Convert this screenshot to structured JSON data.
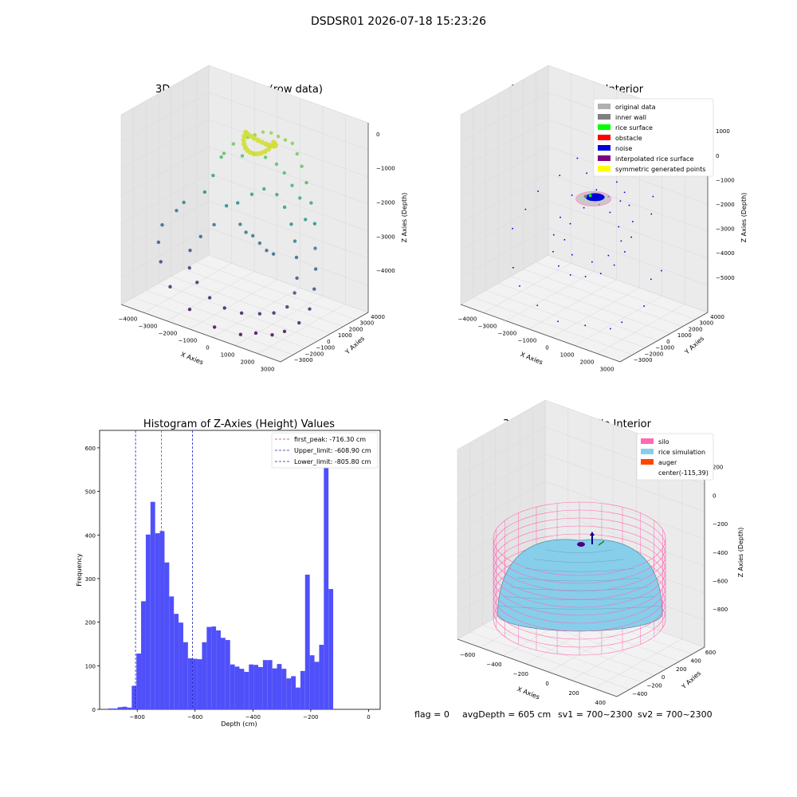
{
  "figure": {
    "suptitle": "DSDSR01 2026-07-18 15:23:26",
    "footer": {
      "flag": "flag = 0",
      "avg_depth": "avgDepth = 605 cm",
      "sv1": "sv1 = 700~2300",
      "sv2": "sv2 = 700~2300"
    }
  },
  "colors": {
    "histogram_bar": "#5050fa",
    "first_peak_line": "#e03030",
    "limit_lines": "#2020c0",
    "silo_wire": "#ff69b4",
    "rice_simulation": "#87ceeb",
    "auger": "#ff4500",
    "classify_original": "#b0b0b0",
    "classify_inner_wall": "#808080",
    "classify_rice_surface": "#00ff00",
    "classify_obstacle": "#ff0000",
    "classify_noise": "#0000dd",
    "classify_interpolated": "#800080",
    "classify_symmetric": "#ffff00"
  },
  "chart_data": [
    {
      "type": "scatter",
      "title": "3D Plot of Silo Interior(row data)",
      "projection": "3d",
      "xlabel": "X Axies",
      "ylabel": "Y Axies",
      "zlabel": "Z Axies (Depth)",
      "x_ticks": [
        "−4000",
        "−3000",
        "−2000",
        "−1000",
        "0",
        "1000",
        "2000",
        "3000"
      ],
      "y_ticks": [
        "−3000",
        "−2000",
        "−1000",
        "0",
        "1000",
        "2000",
        "3000",
        "4000"
      ],
      "z_ticks": [
        "0",
        "−1000",
        "−2000",
        "−3000",
        "−4000"
      ],
      "xlim": [
        -4500,
        3500
      ],
      "ylim": [
        -3500,
        4500
      ],
      "zlim": [
        -4600,
        300
      ],
      "colormap": "viridis",
      "points": [
        [
          -4200,
          -300,
          -3000
        ],
        [
          -3700,
          100,
          -2600
        ],
        [
          -3500,
          400,
          -2400
        ],
        [
          -3000,
          1400,
          -2200
        ],
        [
          -2800,
          1800,
          -1800
        ],
        [
          -2500,
          2000,
          -1300
        ],
        [
          -2200,
          1700,
          -1100
        ],
        [
          -2000,
          2200,
          -900
        ],
        [
          -1500,
          2600,
          -700
        ],
        [
          -1200,
          2700,
          -600
        ],
        [
          -900,
          2900,
          -500
        ],
        [
          -600,
          3100,
          -500
        ],
        [
          -300,
          3200,
          -550
        ],
        [
          0,
          3300,
          -600
        ],
        [
          300,
          3400,
          -650
        ],
        [
          700,
          3100,
          -800
        ],
        [
          1100,
          2800,
          -1000
        ],
        [
          1500,
          2500,
          -1300
        ],
        [
          1900,
          2200,
          -1700
        ],
        [
          2300,
          1800,
          -2100
        ],
        [
          2600,
          1300,
          -2600
        ],
        [
          2900,
          800,
          -3000
        ],
        [
          3100,
          300,
          -3400
        ],
        [
          3200,
          -300,
          -3800
        ],
        [
          3000,
          -900,
          -4100
        ],
        [
          2600,
          -1500,
          -4300
        ],
        [
          2200,
          -1900,
          -4400
        ],
        [
          1600,
          -2300,
          -4400
        ],
        [
          1000,
          -2600,
          -4500
        ],
        [
          -200,
          -2800,
          -4500
        ],
        [
          -1500,
          -2700,
          -4300
        ],
        [
          -2700,
          -2300,
          -4000
        ],
        [
          -3500,
          -1700,
          -3600
        ],
        [
          -4000,
          -1000,
          -3300
        ],
        [
          -1000,
          1000,
          -2600
        ],
        [
          -600,
          800,
          -2700
        ],
        [
          -200,
          700,
          -2700
        ],
        [
          200,
          600,
          -2800
        ],
        [
          600,
          500,
          -2900
        ],
        [
          1000,
          400,
          -2900
        ],
        [
          -1400,
          1500,
          -2200
        ],
        [
          -1800,
          1200,
          -2300
        ],
        [
          -800,
          1700,
          -1900
        ],
        [
          -300,
          1900,
          -1700
        ],
        [
          400,
          1800,
          -1700
        ],
        [
          900,
          1600,
          -1900
        ],
        [
          1400,
          1300,
          -2200
        ],
        [
          1800,
          900,
          -2500
        ],
        [
          2100,
          500,
          -2800
        ],
        [
          2400,
          0,
          -3200
        ],
        [
          2500,
          -400,
          -3500
        ],
        [
          2400,
          -900,
          -3800
        ],
        [
          1900,
          -1200,
          -4000
        ],
        [
          1300,
          -1400,
          -4100
        ],
        [
          500,
          -1600,
          -4200
        ],
        [
          -300,
          -1700,
          -4200
        ],
        [
          -1100,
          -1600,
          -4100
        ],
        [
          -1900,
          -1300,
          -3900
        ],
        [
          -2500,
          -900,
          -3700
        ],
        [
          -2800,
          -300,
          -3400
        ],
        [
          -2600,
          300,
          -3100
        ],
        [
          -2200,
          800,
          -2800
        ],
        [
          0,
          2500,
          -1100
        ],
        [
          -500,
          2400,
          -1000
        ],
        [
          500,
          2300,
          -1200
        ],
        [
          -1000,
          2300,
          -1000
        ],
        [
          1000,
          2100,
          -1400
        ],
        [
          -1500,
          2100,
          -1100
        ],
        [
          1500,
          1900,
          -1600
        ],
        [
          2000,
          1500,
          -2000
        ]
      ]
    },
    {
      "type": "scatter",
      "title": "3D classify of Silo Interior",
      "projection": "3d",
      "xlabel": "X Axies",
      "ylabel": "Y Axies",
      "zlabel": "Z Axies (Depth)",
      "x_ticks": [
        "−4000",
        "−3000",
        "−2000",
        "−1000",
        "0",
        "1000",
        "2000",
        "3000"
      ],
      "y_ticks": [
        "−3000",
        "−2000",
        "−1000",
        "0",
        "1000",
        "2000",
        "3000",
        "4000"
      ],
      "z_ticks": [
        "1000",
        "0",
        "−1000",
        "−2000",
        "−3000",
        "−4000",
        "−5000"
      ],
      "xlim": [
        -4500,
        3500
      ],
      "ylim": [
        -3500,
        4500
      ],
      "zlim": [
        -5600,
        1300
      ],
      "legend_position": "top-right",
      "legend": [
        {
          "label": "original data",
          "color": "#b0b0b0"
        },
        {
          "label": "inner wall",
          "color": "#808080"
        },
        {
          "label": "rice surface",
          "color": "#00ff00"
        },
        {
          "label": "obstacle",
          "color": "#ff0000"
        },
        {
          "label": "noise",
          "color": "#0000dd"
        },
        {
          "label": "interpolated rice surface",
          "color": "#800080"
        },
        {
          "label": "symmetric generated points",
          "color": "#ffff00"
        }
      ],
      "points": [
        [
          -1200,
          2000,
          -1200
        ],
        [
          -800,
          2200,
          -1100
        ],
        [
          -300,
          2300,
          -1100
        ],
        [
          200,
          2200,
          -1200
        ],
        [
          700,
          2000,
          -1400
        ],
        [
          1100,
          1700,
          -1700
        ],
        [
          1500,
          1300,
          -2100
        ],
        [
          1700,
          800,
          -2500
        ],
        [
          1700,
          200,
          -2900
        ],
        [
          1500,
          -400,
          -3300
        ],
        [
          1100,
          -900,
          -3600
        ],
        [
          500,
          -1200,
          -3800
        ],
        [
          -200,
          -1300,
          -3900
        ],
        [
          -900,
          -1100,
          -3800
        ],
        [
          -1400,
          -700,
          -3500
        ],
        [
          -1700,
          -100,
          -3100
        ],
        [
          -1700,
          500,
          -2600
        ],
        [
          -1500,
          1200,
          -1900
        ],
        [
          -3500,
          600,
          -2800
        ],
        [
          -3200,
          1200,
          -2200
        ],
        [
          -2800,
          -1800,
          -4200
        ],
        [
          -2200,
          -2300,
          -4600
        ],
        [
          2600,
          -1700,
          -4800
        ],
        [
          2300,
          -2200,
          -5000
        ],
        [
          3000,
          -400,
          -4400
        ],
        [
          2800,
          600,
          -3700
        ],
        [
          -600,
          3200,
          -700
        ],
        [
          400,
          3300,
          -800
        ],
        [
          1800,
          2600,
          -1400
        ],
        [
          -2000,
          2600,
          -1000
        ],
        [
          0,
          -2800,
          -5200
        ],
        [
          -1200,
          -2500,
          -5000
        ],
        [
          1200,
          -2500,
          -5100
        ],
        [
          -300,
          1500,
          -2000
        ],
        [
          300,
          1400,
          -2100
        ],
        [
          900,
          1100,
          -2400
        ],
        [
          -900,
          1200,
          -2200
        ],
        [
          1300,
          600,
          -2700
        ],
        [
          -1200,
          500,
          -2700
        ],
        [
          1100,
          -200,
          -3100
        ],
        [
          -1100,
          -200,
          -3100
        ],
        [
          500,
          -600,
          -3400
        ],
        [
          -500,
          -600,
          -3400
        ],
        [
          0,
          1800,
          -1700
        ],
        [
          600,
          1800,
          -1700
        ],
        [
          -600,
          1800,
          -1600
        ],
        [
          2100,
          1900,
          -1800
        ],
        [
          -2500,
          1900,
          -1600
        ],
        [
          3100,
          1000,
          -3400
        ],
        [
          -3600,
          -400,
          -3300
        ]
      ]
    },
    {
      "type": "bar",
      "subtype": "histogram",
      "title": "Histogram of Z-Axies (Height) Values",
      "xlabel": "Depth (cm)",
      "ylabel": "Frequency",
      "xlim": [
        -930,
        40
      ],
      "ylim": [
        0,
        640
      ],
      "x_ticks": [
        -800,
        -600,
        -400,
        -200,
        0
      ],
      "x_tick_labels": [
        "−800",
        "−600",
        "−400",
        "−200",
        "0"
      ],
      "y_ticks": [
        0,
        100,
        200,
        300,
        400,
        500,
        600
      ],
      "grid": false,
      "legend_position": "top-right",
      "bin_start": -900,
      "bin_width": 16.2,
      "values": [
        2,
        2,
        5,
        6,
        4,
        54,
        128,
        248,
        401,
        476,
        404,
        409,
        337,
        259,
        219,
        199,
        154,
        117,
        116,
        115,
        154,
        189,
        190,
        181,
        164,
        159,
        103,
        98,
        93,
        86,
        103,
        102,
        97,
        113,
        113,
        94,
        104,
        93,
        71,
        76,
        50,
        88,
        309,
        124,
        109,
        148,
        604,
        276
      ],
      "lines": [
        {
          "label": "first_peak: -716.30 cm",
          "x": -716.3,
          "color": "#e03030"
        },
        {
          "label": "Upper_limit: -608.90 cm",
          "x": -608.9,
          "color": "#2020c0"
        },
        {
          "label": "Lower_limit: -805.80 cm",
          "x": -805.8,
          "color": "#2020c0"
        }
      ]
    },
    {
      "type": "area",
      "title": "3D simulation of Silo Interior",
      "projection": "3d",
      "xlabel": "X Axies",
      "ylabel": "Y Axies",
      "zlabel": "Z Axies (Depth)",
      "x_ticks": [
        "−600",
        "−400",
        "−200",
        "0",
        "200",
        "400"
      ],
      "y_ticks": [
        "−400",
        "−200",
        "0",
        "200",
        "400",
        "600"
      ],
      "z_ticks": [
        "200",
        "0",
        "−200",
        "−400",
        "−600",
        "−800"
      ],
      "xlim": [
        -700,
        500
      ],
      "ylim": [
        -500,
        650
      ],
      "zlim": [
        -900,
        350
      ],
      "legend_position": "top-right",
      "legend": [
        {
          "label": "silo",
          "color": "#ff69b4"
        },
        {
          "label": "rice simulation",
          "color": "#87ceeb"
        },
        {
          "label": "auger",
          "color": "#ff4500"
        },
        {
          "label": "center(-115,39)",
          "color": ""
        }
      ],
      "silo": {
        "center": [
          -115,
          39
        ],
        "radius": 560,
        "z_top": 150,
        "z_bottom": -850
      },
      "rice_surface": {
        "center": [
          -115,
          39
        ],
        "radius": 520,
        "z_peak": -100,
        "z_edge": -650
      }
    }
  ]
}
